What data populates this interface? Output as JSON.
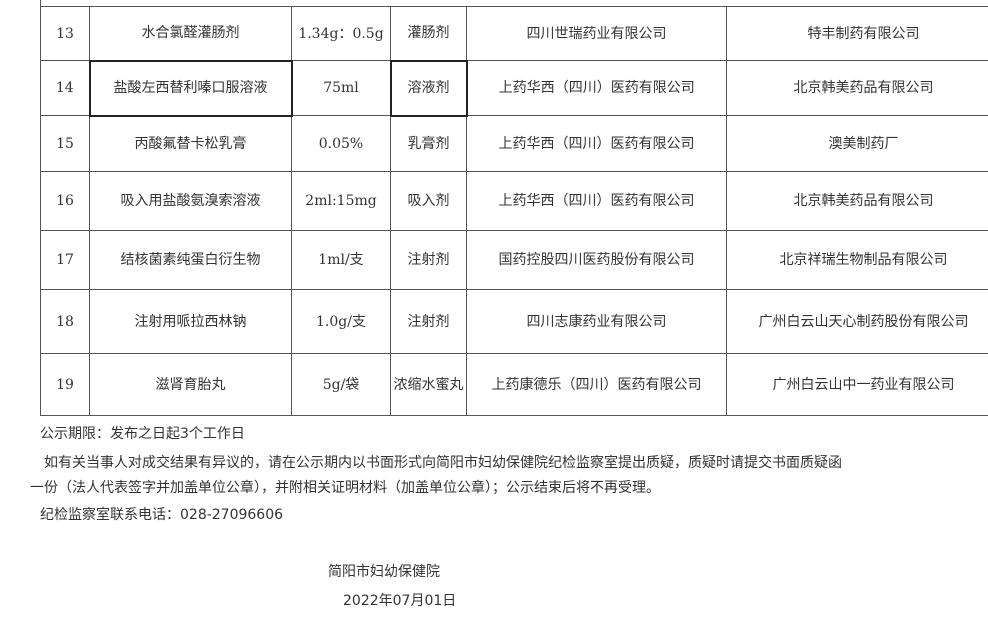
{
  "table": {
    "rows": [
      [
        "13",
        "水合氯醛灌肠剂",
        "1.34g：0.5g",
        "灌肠剂",
        "四川世瑞药业有限公司",
        "特丰制药有限公司"
      ],
      [
        "14",
        "盐酸左西替利嗪口服溶液",
        "75ml",
        "溶液剂",
        "上药华西（四川）医药有限公司",
        "北京韩美药品有限公司"
      ],
      [
        "15",
        "丙酸氟替卡松乳膏",
        "0.05%",
        "乳膏剂",
        "上药华西（四川）医药有限公司",
        "澳美制药厂"
      ],
      [
        "16",
        "吸入用盐酸氨溴索溶液",
        "2ml:15mg",
        "吸入剂",
        "上药华西（四川）医药有限公司",
        "北京韩美药品有限公司"
      ],
      [
        "17",
        "结核菌素纯蛋白衍生物",
        "1ml/支",
        "注射剂",
        "国药控股四川医药股份有限公司",
        "北京祥瑞生物制品有限公司"
      ],
      [
        "18",
        "注射用哌拉西林钠",
        "1.0g/支",
        "注射剂",
        "四川志康药业有限公司",
        "广州白云山天心制药股份有限公司"
      ],
      [
        "19",
        "滋肾育胎丸",
        "5g/袋",
        "浓缩水蜜丸",
        "上药康德乐（四川）医药有限公司",
        "广州白云山中一药业有限公司"
      ]
    ]
  },
  "notice": {
    "period": "公示期限：发布之日起3个工作日",
    "objection_line1": "如有关当事人对成交结果有异议的，请在公示期内以书面形式向简阳市妇幼保健院纪检监察室提出质疑，质疑时请提交书面质疑函",
    "objection_line2": "一份（法人代表签字并加盖单位公章），并附相关证明材料（加盖单位公章）；公示结束后将不再受理。",
    "contact": "纪检监察室联系电话：028-27096606",
    "org": "简阳市妇幼保健院",
    "date": "2022年07月01日"
  }
}
